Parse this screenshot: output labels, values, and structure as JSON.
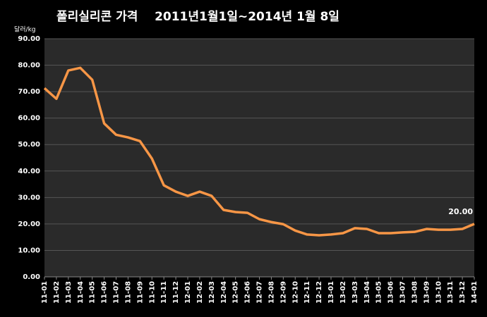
{
  "chart_data": {
    "type": "line",
    "title": "폴리실리콘 가격    2011년1월1일~2014년 1월 8일",
    "y_label": "달러/kg",
    "categories": [
      "11-01",
      "11-02",
      "11-03",
      "11-04",
      "11-05",
      "11-06",
      "11-07",
      "11-08",
      "11-09",
      "11-10",
      "11-11",
      "11-12",
      "12-01",
      "12-02",
      "12-03",
      "12-04",
      "12-05",
      "12-06",
      "12-07",
      "12-08",
      "12-09",
      "12-10",
      "12-11",
      "12-12",
      "13-01",
      "13-02",
      "13-03",
      "13-04",
      "13-05",
      "13-06",
      "13-07",
      "13-08",
      "13-09",
      "13-10",
      "13-11",
      "13-12",
      "14-01"
    ],
    "series": [
      {
        "color": "#f79646",
        "values": [
          71.3,
          67.3,
          78,
          79,
          74.5,
          58,
          53.7,
          52.7,
          51.3,
          44.7,
          34.6,
          32.2,
          30.6,
          32.2,
          30.6,
          25.3,
          24.5,
          24.2,
          21.8,
          20.7,
          19.9,
          17.5,
          16,
          15.7,
          16,
          16.5,
          18.4,
          18.1,
          16.5,
          16.5,
          16.8,
          17,
          18.1,
          17.8,
          17.8,
          18.1,
          20
        ],
        "value_labels": [
          null,
          null,
          null,
          null,
          null,
          null,
          null,
          null,
          null,
          null,
          null,
          null,
          null,
          null,
          null,
          null,
          null,
          null,
          null,
          null,
          null,
          null,
          null,
          null,
          null,
          null,
          null,
          null,
          null,
          null,
          null,
          null,
          null,
          null,
          null,
          null,
          "20.00"
        ]
      }
    ],
    "ylim": [
      0,
      90
    ],
    "yticks": [
      {
        "value": 0,
        "label": "0.00"
      },
      {
        "value": 10,
        "label": "10.00"
      },
      {
        "value": 20,
        "label": "20.00"
      },
      {
        "value": 30,
        "label": "30.00"
      },
      {
        "value": 40,
        "label": "40.00"
      },
      {
        "value": 50,
        "label": "50.00"
      },
      {
        "value": 60,
        "label": "60.00"
      },
      {
        "value": 70,
        "label": "70.00"
      },
      {
        "value": 80,
        "label": "80.00"
      },
      {
        "value": 90,
        "label": "90.00"
      }
    ],
    "grid": true
  }
}
